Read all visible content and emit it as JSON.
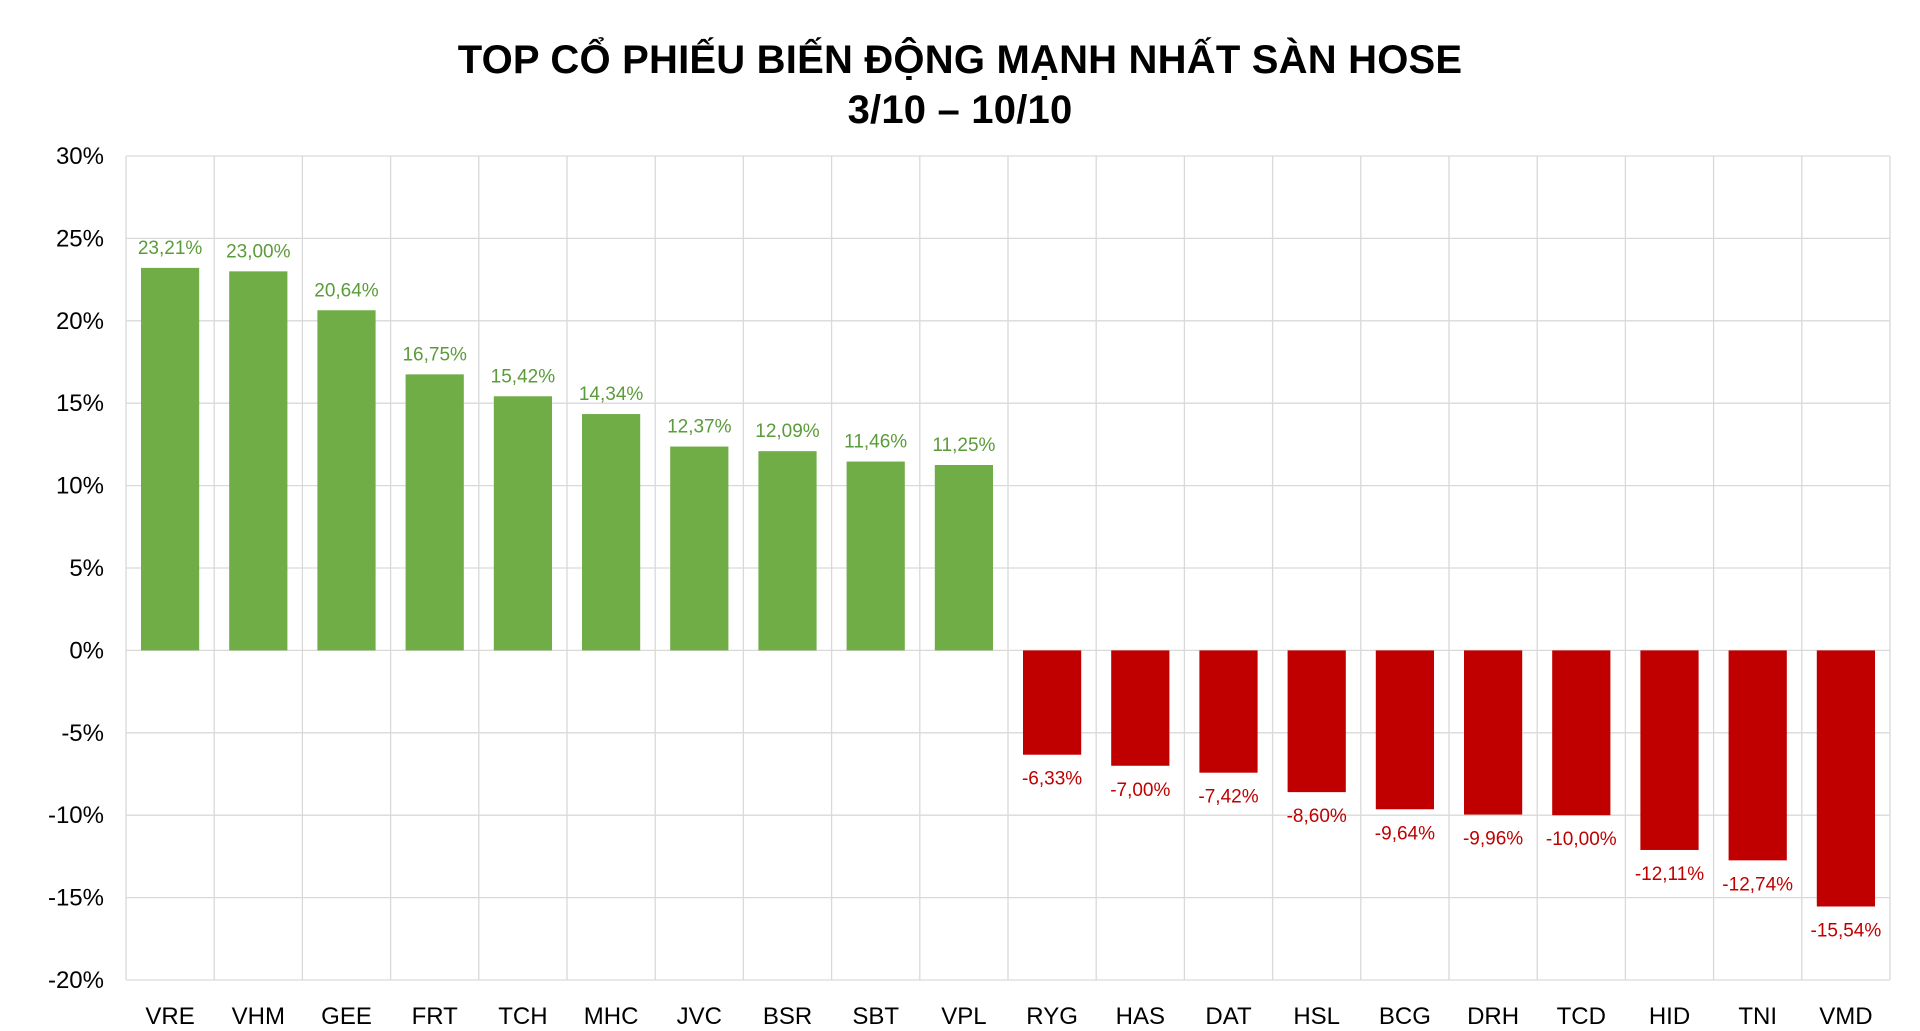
{
  "chart_data": {
    "type": "bar",
    "title": "TOP CỔ PHIẾU BIẾN ĐỘNG MẠNH NHẤT SÀN HOSE",
    "subtitle": "3/10 – 10/10",
    "xlabel": "",
    "ylabel": "",
    "ylim": [
      -20,
      30
    ],
    "yticks": [
      30,
      25,
      20,
      15,
      10,
      5,
      0,
      -5,
      -10,
      -15,
      -20
    ],
    "ytick_labels": [
      "30%",
      "25%",
      "20%",
      "15%",
      "10%",
      "5%",
      "0%",
      "-5%",
      "-10%",
      "-15%",
      "-20%"
    ],
    "grid": true,
    "legend": "none",
    "categories": [
      "VRE",
      "VHM",
      "GEE",
      "FRT",
      "TCH",
      "MHC",
      "JVC",
      "BSR",
      "SBT",
      "VPL",
      "RYG",
      "HAS",
      "DAT",
      "HSL",
      "BCG",
      "DRH",
      "TCD",
      "HID",
      "TNI",
      "VMD"
    ],
    "values": [
      23.21,
      23.0,
      20.64,
      16.75,
      15.42,
      14.34,
      12.37,
      12.09,
      11.46,
      11.25,
      -6.33,
      -7.0,
      -7.42,
      -8.6,
      -9.64,
      -9.96,
      -10.0,
      -12.11,
      -12.74,
      -15.54
    ],
    "data_labels": [
      "23,21%",
      "23,00%",
      "20,64%",
      "16,75%",
      "15,42%",
      "14,34%",
      "12,37%",
      "12,09%",
      "11,46%",
      "11,25%",
      "-6,33%",
      "-7,00%",
      "-7,42%",
      "-8,60%",
      "-9,64%",
      "-9,96%",
      "-10,00%",
      "-12,11%",
      "-12,74%",
      "-15,54%"
    ],
    "colors": {
      "positive_bar": "#70ad47",
      "negative_bar": "#c00000",
      "positive_label": "#5b9b3a",
      "negative_label": "#c00000",
      "grid": "#d9d9d9"
    }
  }
}
